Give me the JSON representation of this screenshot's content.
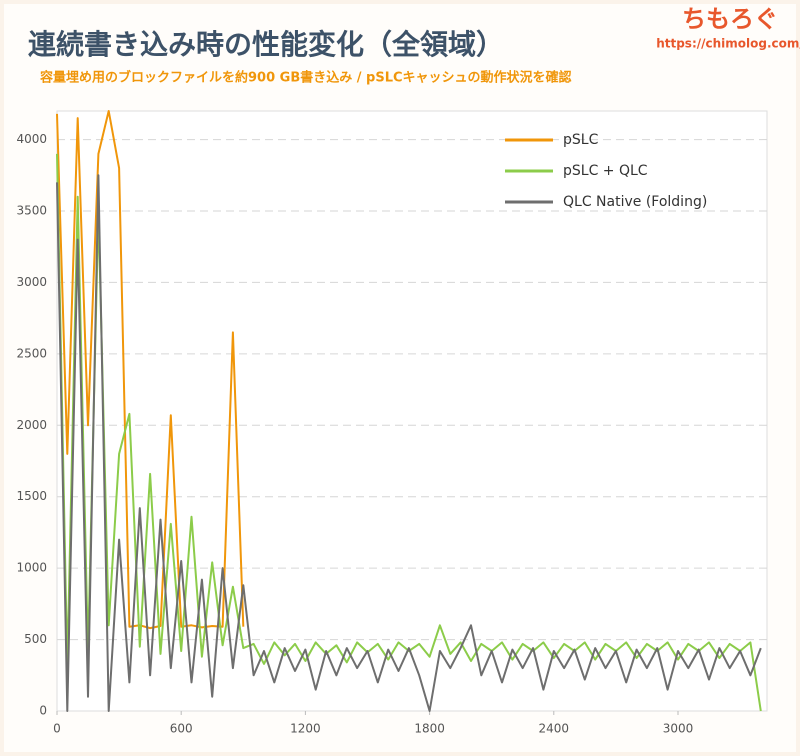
{
  "chart_data": {
    "type": "line",
    "title": "連続書き込み時の性能変化（全領域）",
    "subtitle": "容量埋め用のブロックファイルを約900 GB書き込み / pSLCキャッシュの動作状況を確認",
    "x": [
      0,
      50,
      100,
      150,
      200,
      250,
      300,
      350,
      400,
      450,
      500,
      550,
      600,
      650,
      700,
      750,
      800,
      850,
      900,
      950,
      1000,
      1050,
      1100,
      1150,
      1200,
      1250,
      1300,
      1350,
      1400,
      1450,
      1500,
      1550,
      1600,
      1650,
      1700,
      1750,
      1800,
      1850,
      1900,
      1950,
      2000,
      2050,
      2100,
      2150,
      2200,
      2250,
      2300,
      2350,
      2400,
      2450,
      2500,
      2550,
      2600,
      2650,
      2700,
      2750,
      2800,
      2850,
      2900,
      2950,
      3000,
      3050,
      3100,
      3150,
      3200,
      3250,
      3300,
      3350,
      3400
    ],
    "series": [
      {
        "name": "pSLC",
        "color": "#f0960a",
        "values": [
          4180,
          1800,
          4150,
          2000,
          3900,
          4200,
          3800,
          590,
          600,
          580,
          595,
          2070,
          590,
          600,
          585,
          595,
          590,
          2650,
          590,
          null,
          null,
          null,
          null,
          null,
          null,
          null,
          null,
          null,
          null,
          null,
          null,
          null,
          null,
          null,
          null,
          null,
          null,
          null,
          null,
          null,
          null,
          null,
          null,
          null,
          null,
          null,
          null,
          null,
          null,
          null,
          null,
          null,
          null,
          null,
          null,
          null,
          null,
          null,
          null,
          null,
          null,
          null,
          null,
          null,
          null,
          null,
          null,
          null,
          null
        ]
      },
      {
        "name": "pSLC + QLC",
        "color": "#8ccc4a",
        "values": [
          3900,
          300,
          3600,
          400,
          3500,
          600,
          1800,
          2080,
          450,
          1660,
          400,
          1310,
          420,
          1360,
          380,
          1040,
          460,
          870,
          440,
          470,
          330,
          480,
          390,
          470,
          350,
          480,
          400,
          460,
          340,
          480,
          410,
          470,
          360,
          480,
          420,
          470,
          380,
          600,
          400,
          480,
          350,
          470,
          420,
          480,
          360,
          470,
          420,
          480,
          370,
          470,
          420,
          480,
          360,
          470,
          420,
          480,
          370,
          470,
          420,
          480,
          360,
          470,
          420,
          480,
          370,
          470,
          420,
          480,
          0
        ]
      },
      {
        "name": "QLC Native (Folding)",
        "color": "#6e6e6e",
        "values": [
          3700,
          0,
          3300,
          100,
          3750,
          0,
          1200,
          200,
          1420,
          250,
          1340,
          300,
          1050,
          200,
          920,
          100,
          1000,
          300,
          880,
          250,
          420,
          200,
          440,
          280,
          430,
          150,
          420,
          250,
          440,
          300,
          420,
          200,
          430,
          280,
          440,
          250,
          0,
          420,
          300,
          440,
          600,
          250,
          420,
          200,
          430,
          300,
          440,
          150,
          420,
          300,
          430,
          220,
          440,
          300,
          420,
          200,
          430,
          300,
          440,
          150,
          420,
          300,
          430,
          220,
          440,
          300,
          420,
          250,
          440
        ]
      }
    ],
    "xlim": [
      0,
      3430
    ],
    "ylim": [
      0,
      4200
    ],
    "xticks": [
      0,
      600,
      1200,
      1800,
      2400,
      3000
    ],
    "yticks": [
      0,
      500,
      1000,
      1500,
      2000,
      2500,
      3000,
      3500,
      4000
    ],
    "grid": true,
    "legend": "upper right"
  },
  "brand": {
    "name": "ちもろぐ",
    "url": "https://chimolog.com/"
  }
}
